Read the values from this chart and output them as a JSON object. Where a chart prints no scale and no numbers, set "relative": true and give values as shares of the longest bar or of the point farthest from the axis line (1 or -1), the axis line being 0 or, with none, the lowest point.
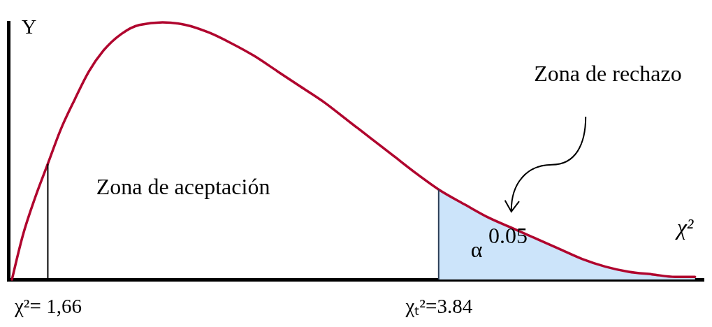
{
  "chart_data": {
    "type": "line",
    "relative": true,
    "xlabel": "χ²",
    "ylabel": "Y",
    "xlim": [
      1.44,
      5.31
    ],
    "xticks": [
      {
        "value": 1.66,
        "label": "χ²= 1,66"
      },
      {
        "value": 3.84,
        "label": "χₜ²=3.84"
      }
    ],
    "tick_labels": "x",
    "line_style": "solid",
    "series": [
      {
        "color": "#b0052e",
        "x": [
          1.46,
          1.52,
          1.59,
          1.66,
          1.73,
          1.81,
          1.89,
          1.97,
          2.07,
          2.17,
          2.3,
          2.43,
          2.56,
          2.68,
          2.81,
          2.94,
          3.07,
          3.2,
          3.33,
          3.46,
          3.59,
          3.72,
          3.84,
          3.99,
          4.12,
          4.25,
          4.38,
          4.51,
          4.64,
          4.77,
          4.9,
          5.03,
          5.16,
          5.27
        ],
        "values": [
          0,
          0.17,
          0.32,
          0.45,
          0.58,
          0.7,
          0.81,
          0.89,
          0.955,
          0.99,
          1,
          0.99,
          0.96,
          0.92,
          0.87,
          0.81,
          0.75,
          0.69,
          0.62,
          0.55,
          0.48,
          0.41,
          0.35,
          0.29,
          0.24,
          0.2,
          0.16,
          0.12,
          0.08,
          0.05,
          0.03,
          0.02,
          0.01,
          0.01
        ]
      },
      {
        "type": "area",
        "color": "#cce4fa",
        "x": [
          3.84,
          3.99,
          4.12,
          4.25,
          4.38,
          4.51,
          4.64,
          4.77,
          4.9,
          5.03,
          5.16,
          5.27
        ],
        "values": [
          0.35,
          0.29,
          0.24,
          0.2,
          0.16,
          0.12,
          0.08,
          0.05,
          0.03,
          0.02,
          0.01,
          0.01
        ]
      }
    ],
    "ref_lines": [
      {
        "axis": "x",
        "value": 1.66,
        "color": "#000000"
      },
      {
        "axis": "x",
        "value": 3.84,
        "color": "#2b3d55"
      }
    ],
    "annotations": [
      "Zona de aceptación",
      "Zona de rechazo",
      "α",
      "0.05"
    ]
  }
}
